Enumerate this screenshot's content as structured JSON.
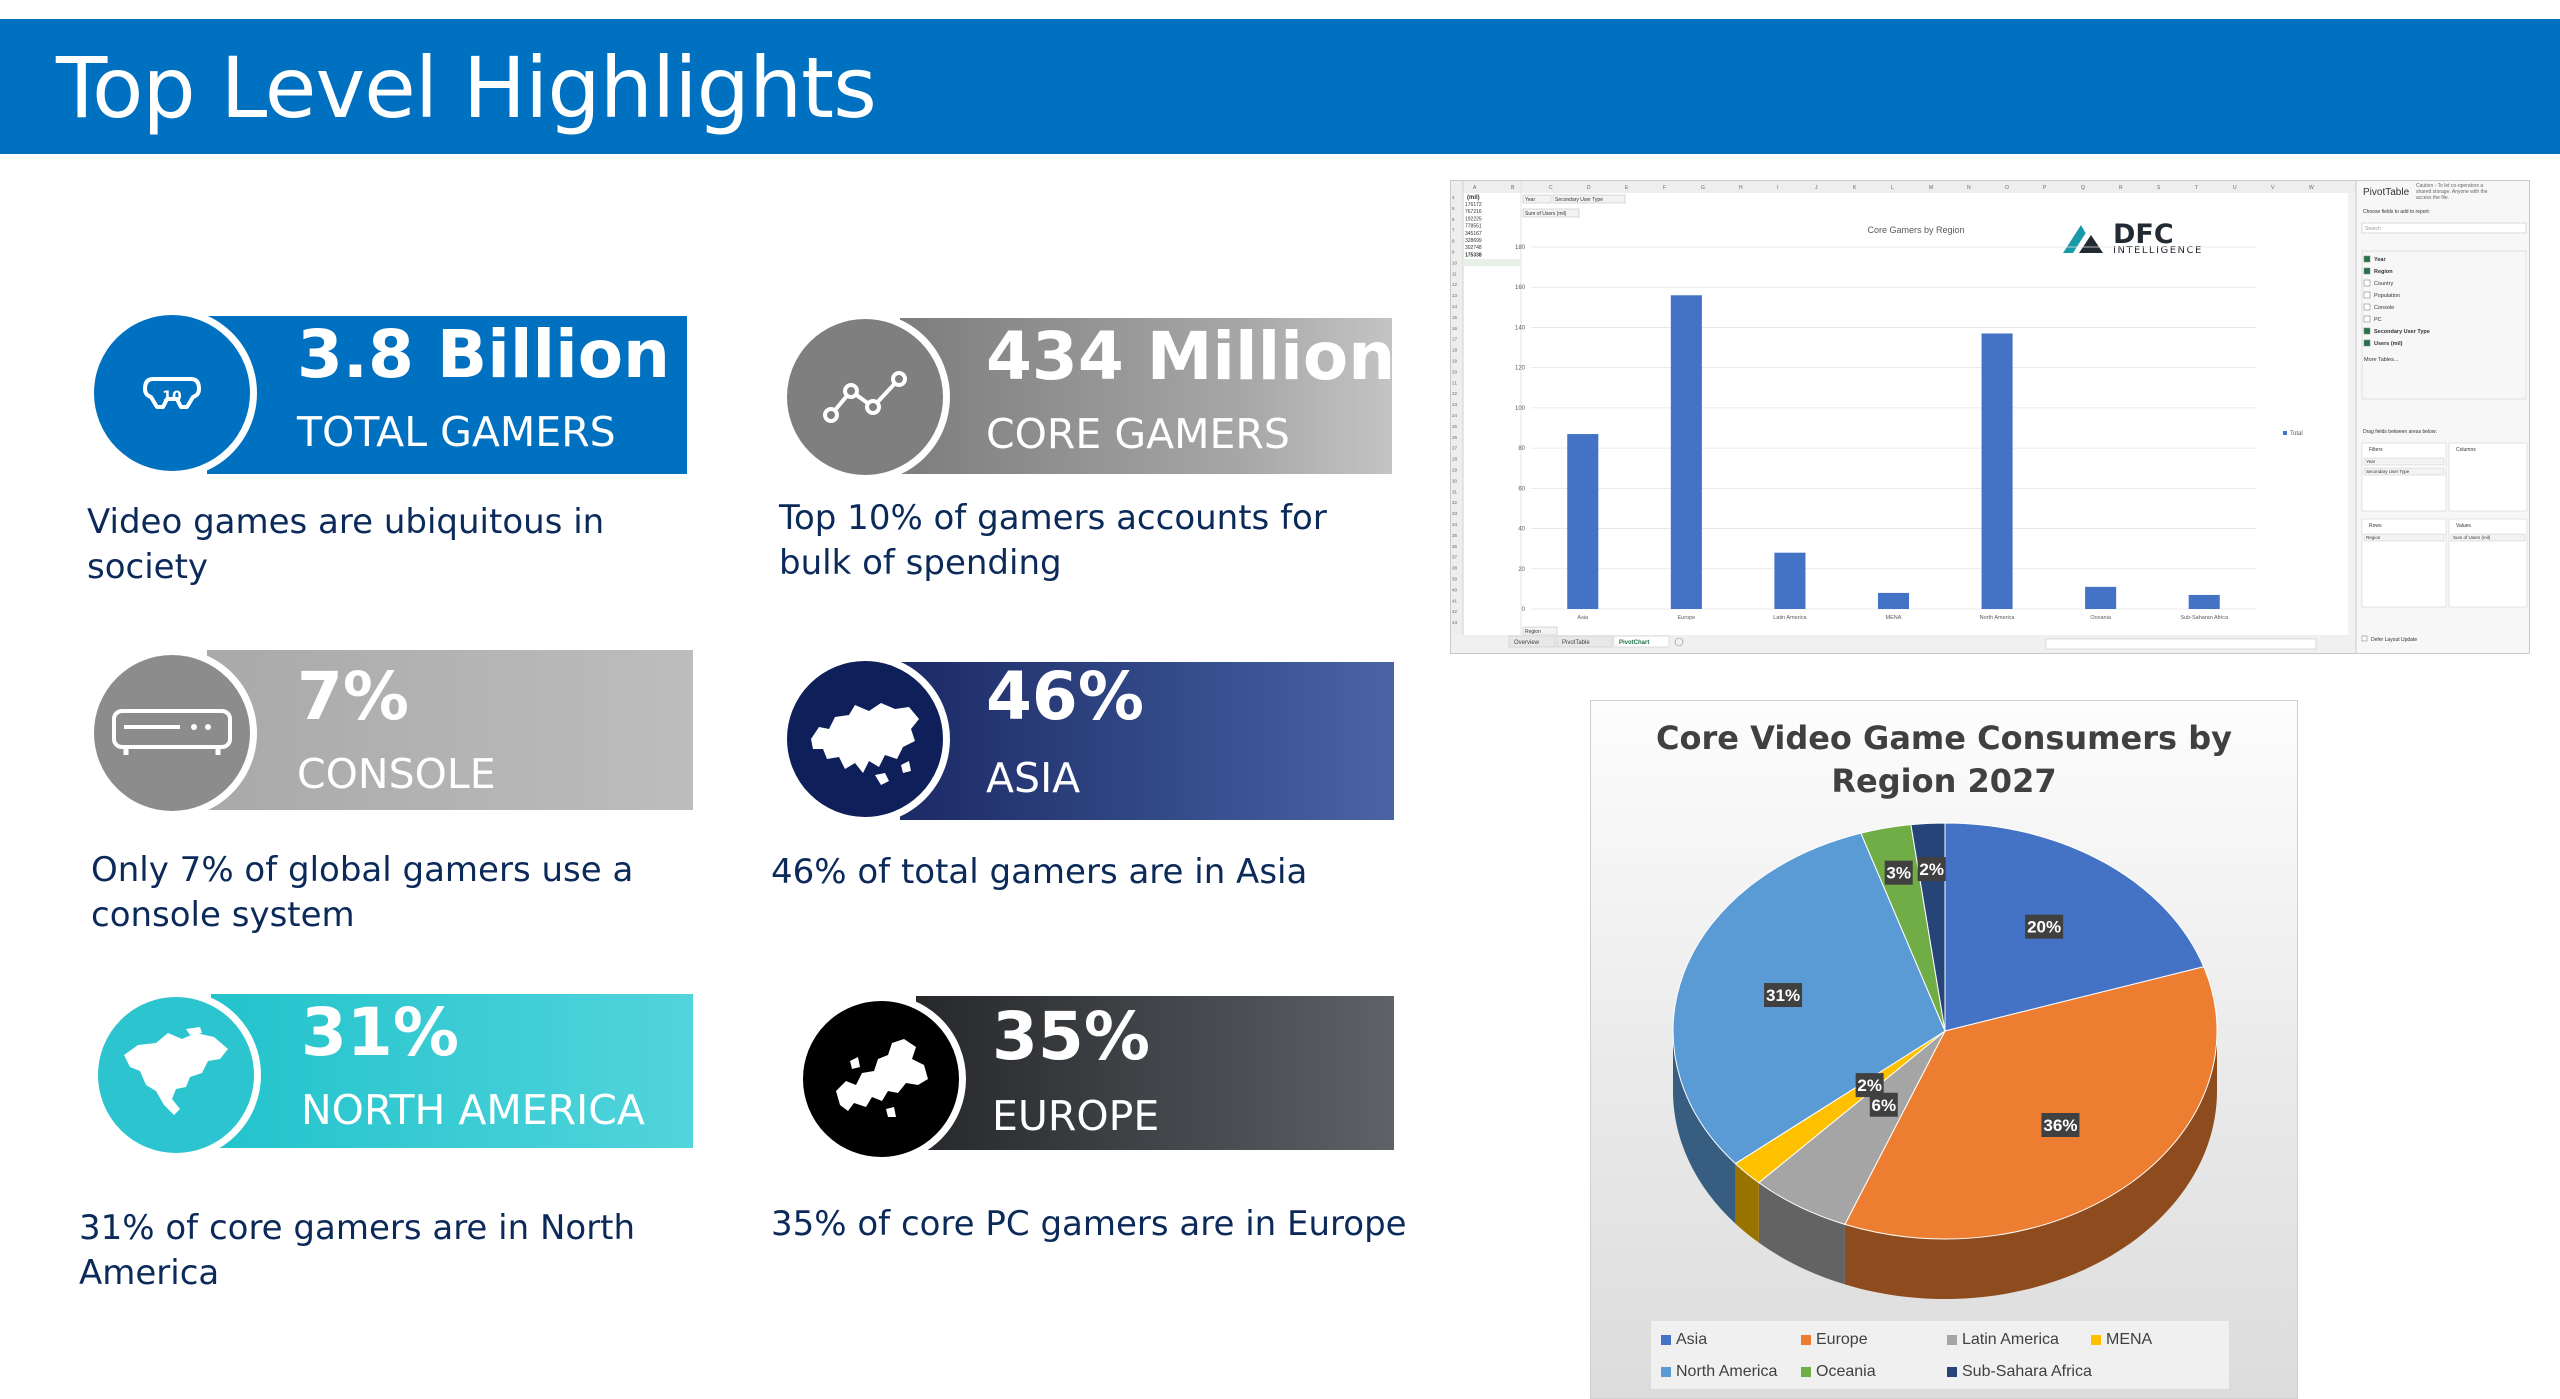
{
  "header": {
    "title": "Top Level Highlights"
  },
  "stats": [
    {
      "value": "3.8 Billion",
      "label": "TOTAL GAMERS",
      "desc_lines": [
        "Video games are ubiquitous in",
        "society"
      ],
      "icon": "gamepad-icon",
      "color": "#0070c0"
    },
    {
      "value": "434 Million",
      "label": "CORE GAMERS",
      "desc_lines": [
        "Top 10% of gamers accounts for",
        "bulk of spending"
      ],
      "icon": "trend-line-icon",
      "color": "#8a8a8a"
    },
    {
      "value": "7%",
      "label": "CONSOLE",
      "desc_lines": [
        "Only 7% of global gamers use a",
        "console system"
      ],
      "icon": "console-icon",
      "color": "#9a9a9a"
    },
    {
      "value": "46%",
      "label": "ASIA",
      "desc_lines": [
        "46% of total gamers are in Asia"
      ],
      "icon": "asia-map-icon",
      "color": "#1f2f6d"
    },
    {
      "value": "31%",
      "label": "NORTH AMERICA",
      "desc_lines": [
        "31% of core gamers are in North",
        "America"
      ],
      "icon": "north-america-map-icon",
      "color": "#2fc6d0"
    },
    {
      "value": "35%",
      "label": "EUROPE",
      "desc_lines": [
        "35% of core PC gamers are in Europe"
      ],
      "icon": "europe-map-icon",
      "color": "#2f3133"
    }
  ],
  "excel": {
    "chart_title": "Core Gamers by Region",
    "logo_top": "DFC",
    "logo_bottom": "INTELLIGENCE",
    "legend_item": "Total",
    "filter_year": "Year",
    "filter_secondary": "Secondary User Type",
    "sum_label": "Sum of Users (mil)",
    "row_header": "(mil)",
    "row_values": [
      "176172",
      "767216",
      "192225",
      "778551",
      "345167",
      "328699",
      "302748",
      "175338"
    ],
    "region_button": "Region",
    "sheet_tabs": [
      "Overview",
      "PivotTable",
      "PivotChart"
    ],
    "pane": {
      "title": "PivotTable",
      "note_lines": [
        "Caution - To let co-operators a",
        "shared storage. Anyone with the",
        "access the file."
      ],
      "choose": "Choose fields to add to report:",
      "search": "Search",
      "fields": [
        {
          "name": "Year",
          "checked": true
        },
        {
          "name": "Region",
          "checked": true
        },
        {
          "name": "Country",
          "checked": false
        },
        {
          "name": "Population",
          "checked": false
        },
        {
          "name": "Console",
          "checked": false
        },
        {
          "name": "PC",
          "checked": false
        },
        {
          "name": "Secondary User Type",
          "checked": true
        },
        {
          "name": "Users (mil)",
          "checked": true
        }
      ],
      "more_tables": "More Tables...",
      "drag_label": "Drag fields between areas below:",
      "filters": "Filters",
      "columns": "Columns",
      "rows": "Rows",
      "values": "Values",
      "filter_items": [
        "Year",
        "Secondary User Type"
      ],
      "row_items": [
        "Region"
      ],
      "value_items": [
        "Sum of Users (mil)"
      ],
      "defer": "Defer Layout Update"
    }
  },
  "pie": {
    "title_lines": [
      "Core Video Game Consumers by",
      "Region 2027"
    ],
    "labels": {
      "asia": "20%",
      "europe": "36%",
      "latam": "6%",
      "mena": "2%",
      "north_america": "31%",
      "oceania": "3%",
      "subsahara": "2%"
    },
    "legend": [
      "Asia",
      "Europe",
      "Latin America",
      "MENA",
      "North America",
      "Oceania",
      "Sub-Sahara Africa"
    ]
  },
  "chart_data": [
    {
      "type": "bar",
      "title": "Core Gamers by Region",
      "categories": [
        "Asia",
        "Europe",
        "Latin America",
        "MENA",
        "North America",
        "Oceania",
        "Sub-Saharan Africa"
      ],
      "series": [
        {
          "name": "Total",
          "values": [
            87,
            156,
            28,
            8,
            137,
            11,
            7
          ]
        }
      ],
      "ylim": [
        0,
        180
      ],
      "yticks": [
        0,
        20,
        40,
        60,
        80,
        100,
        120,
        140,
        160,
        180
      ],
      "grid": true,
      "legend": "right",
      "color": "#4472c4"
    },
    {
      "type": "pie",
      "title": "Core Video Game Consumers by Region 2027",
      "categories": [
        "Asia",
        "Europe",
        "Latin America",
        "MENA",
        "North America",
        "Oceania",
        "Sub-Sahara Africa"
      ],
      "values": [
        20,
        36,
        6,
        2,
        31,
        3,
        2
      ],
      "colors": [
        "#4472c4",
        "#ed7d31",
        "#a5a5a5",
        "#ffc000",
        "#5b9bd5",
        "#70ad47",
        "#264478"
      ],
      "legend": "bottom"
    }
  ]
}
